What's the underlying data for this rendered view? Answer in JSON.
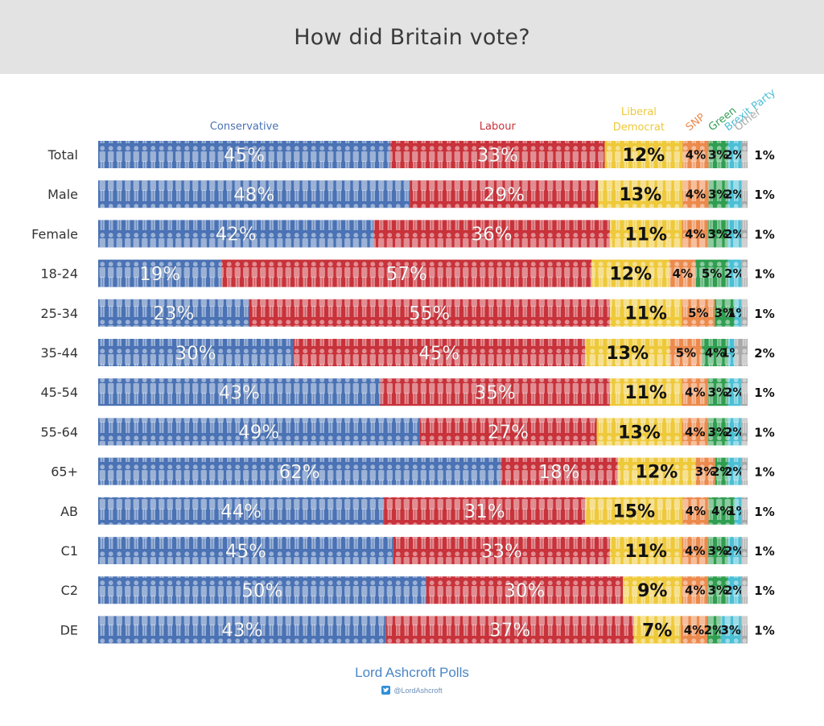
{
  "title": "How did Britain vote?",
  "footer": {
    "brand": "Lord Ashcroft Polls",
    "handle": "@LordAshcroft",
    "icon": "twitter-icon"
  },
  "colors": {
    "Conservative": "#4a72b4",
    "Labour": "#c8323a",
    "Liberal Democrat": "#eec93a",
    "SNP": "#ec8a4d",
    "Green": "#2f9e51",
    "Brexit Party": "#4bbfd5",
    "Other": "#a9a9a9"
  },
  "chart_data": {
    "type": "bar",
    "stacked": true,
    "orientation": "horizontal",
    "title": "How did Britain vote?",
    "categories": [
      "Total",
      "Male",
      "Female",
      "18-24",
      "25-34",
      "35-44",
      "45-54",
      "55-64",
      "65+",
      "AB",
      "C1",
      "C2",
      "DE"
    ],
    "series": [
      {
        "name": "Conservative",
        "values": [
          45,
          48,
          42,
          19,
          23,
          30,
          43,
          49,
          62,
          44,
          45,
          50,
          43
        ]
      },
      {
        "name": "Labour",
        "values": [
          33,
          29,
          36,
          57,
          55,
          45,
          35,
          27,
          18,
          31,
          33,
          30,
          37
        ]
      },
      {
        "name": "Liberal Democrat",
        "values": [
          12,
          13,
          11,
          12,
          11,
          13,
          11,
          13,
          12,
          15,
          11,
          9,
          7
        ]
      },
      {
        "name": "SNP",
        "values": [
          4,
          4,
          4,
          4,
          5,
          5,
          4,
          4,
          3,
          4,
          4,
          4,
          4
        ]
      },
      {
        "name": "Green",
        "values": [
          3,
          3,
          3,
          5,
          3,
          4,
          3,
          3,
          2,
          4,
          3,
          3,
          2
        ]
      },
      {
        "name": "Brexit Party",
        "values": [
          2,
          2,
          2,
          2,
          1,
          1,
          2,
          2,
          2,
          1,
          2,
          2,
          3
        ]
      },
      {
        "name": "Other",
        "values": [
          1,
          1,
          1,
          1,
          1,
          2,
          1,
          1,
          1,
          1,
          1,
          1,
          1
        ]
      }
    ],
    "legend_labels": {
      "Conservative": "Conservative",
      "Labour": "Labour",
      "Liberal Democrat": [
        "Liberal",
        "Democrat"
      ],
      "SNP": "SNP",
      "Green": "Green",
      "Brexit Party": "Brexit Party",
      "Other": "Other"
    },
    "xlim": [
      0,
      100
    ],
    "unit": "%"
  }
}
